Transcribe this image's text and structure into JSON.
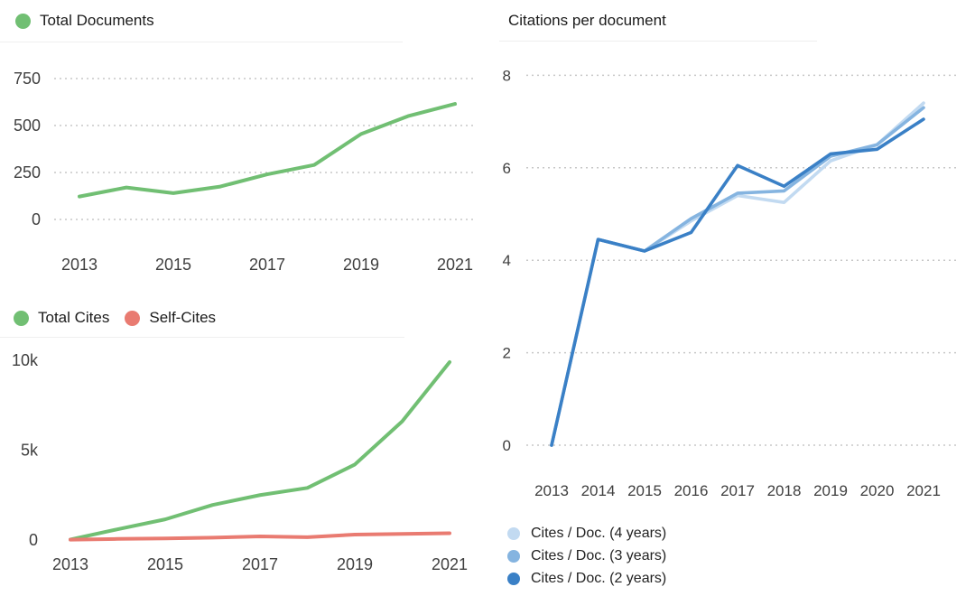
{
  "chart_data": [
    {
      "id": "total-documents",
      "type": "line",
      "title": "",
      "legend": [
        {
          "label": "Total Documents",
          "color": "#71bf73"
        }
      ],
      "x": [
        2013,
        2014,
        2015,
        2016,
        2017,
        2018,
        2019,
        2020,
        2021
      ],
      "series": [
        {
          "name": "Total Documents",
          "color": "#71bf73",
          "values": [
            122,
            170,
            140,
            175,
            240,
            290,
            455,
            550,
            615
          ]
        }
      ],
      "y_ticks": [
        {
          "label": "750",
          "value": 750
        },
        {
          "label": "500",
          "value": 500
        },
        {
          "label": "250",
          "value": 250
        },
        {
          "label": "0",
          "value": 0
        }
      ],
      "x_tick_labels": [
        "2013",
        "2015",
        "2017",
        "2019",
        "2021"
      ],
      "ylim": [
        0,
        750
      ],
      "grid": "dotted",
      "legend_position": "top"
    },
    {
      "id": "total-cites",
      "type": "line",
      "title": "",
      "legend": [
        {
          "label": "Total Cites",
          "color": "#71bf73"
        },
        {
          "label": "Self-Cites",
          "color": "#e97b71"
        }
      ],
      "x": [
        2013,
        2014,
        2015,
        2016,
        2017,
        2018,
        2019,
        2020,
        2021
      ],
      "series": [
        {
          "name": "Total Cites",
          "color": "#71bf73",
          "values": [
            30,
            600,
            1150,
            1950,
            2500,
            2900,
            4200,
            6600,
            9900
          ]
        },
        {
          "name": "Self-Cites",
          "color": "#e97b71",
          "values": [
            20,
            60,
            90,
            130,
            200,
            160,
            300,
            340,
            380
          ]
        }
      ],
      "y_ticks": [
        {
          "label": "10k",
          "value": 10000
        },
        {
          "label": "5k",
          "value": 5000
        },
        {
          "label": "0",
          "value": 0
        }
      ],
      "x_tick_labels": [
        "2013",
        "2015",
        "2017",
        "2019",
        "2021"
      ],
      "ylim": [
        0,
        10000
      ],
      "grid": "none",
      "legend_position": "top"
    },
    {
      "id": "citations-per-document",
      "type": "line",
      "title": "Citations per document",
      "legend": [
        {
          "label": "Cites / Doc. (4 years)",
          "color": "#c2daf1"
        },
        {
          "label": "Cites / Doc. (3 years)",
          "color": "#85b4e0"
        },
        {
          "label": "Cites / Doc. (2 years)",
          "color": "#3a80c6"
        }
      ],
      "x": [
        2013,
        2014,
        2015,
        2016,
        2017,
        2018,
        2019,
        2020,
        2021
      ],
      "series": [
        {
          "name": "Cites / Doc. (4 years)",
          "color": "#c2daf1",
          "values": [
            0,
            4.45,
            4.2,
            4.85,
            5.4,
            5.25,
            6.15,
            6.5,
            7.4
          ]
        },
        {
          "name": "Cites / Doc. (3 years)",
          "color": "#85b4e0",
          "values": [
            0,
            4.45,
            4.2,
            4.9,
            5.45,
            5.5,
            6.25,
            6.5,
            7.3
          ]
        },
        {
          "name": "Cites / Doc. (2 years)",
          "color": "#3a80c6",
          "values": [
            0,
            4.45,
            4.2,
            4.6,
            6.05,
            5.6,
            6.3,
            6.4,
            7.05
          ]
        }
      ],
      "y_ticks": [
        {
          "label": "8",
          "value": 8
        },
        {
          "label": "6",
          "value": 6
        },
        {
          "label": "4",
          "value": 4
        },
        {
          "label": "2",
          "value": 2
        },
        {
          "label": "0",
          "value": 0
        }
      ],
      "x_tick_labels": [
        "2013",
        "2014",
        "2015",
        "2016",
        "2017",
        "2018",
        "2019",
        "2020",
        "2021"
      ],
      "ylim": [
        0,
        8
      ],
      "grid": "dotted",
      "legend_position": "bottom"
    }
  ]
}
